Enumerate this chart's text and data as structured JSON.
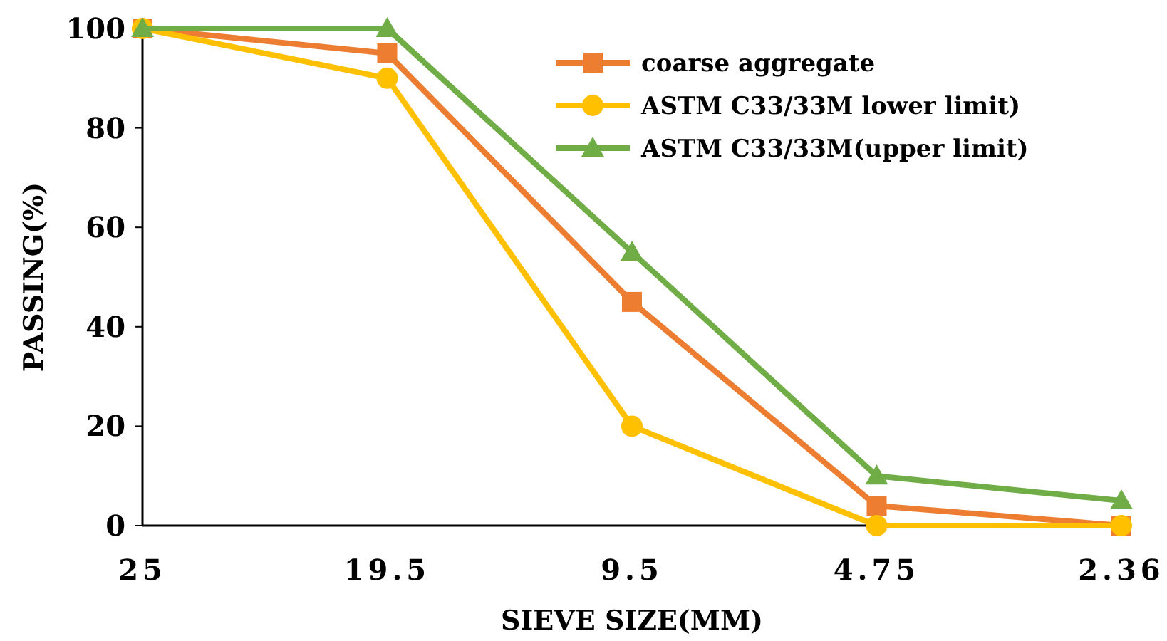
{
  "chart_data": {
    "type": "line",
    "xlabel": "SIEVE SIZE(MM)",
    "ylabel": "PASSING(%)",
    "categories": [
      "25",
      "19.5",
      "9.5",
      "4.75",
      "2.36"
    ],
    "ylim": [
      0,
      100
    ],
    "yticks": [
      0,
      20,
      40,
      60,
      80,
      100
    ],
    "grid": false,
    "legend": "top right",
    "line_style": "solid",
    "series": [
      {
        "name": "coarse aggregate",
        "color": "#ed7d31",
        "marker": "square",
        "values": [
          100,
          95,
          45,
          4,
          0
        ]
      },
      {
        "name": "ASTM C33/33M lower limit)",
        "color": "#ffc000",
        "marker": "circle",
        "values": [
          100,
          90,
          20,
          0,
          0
        ]
      },
      {
        "name": "ASTM C33/33M(upper limit)",
        "color": "#70ad47",
        "marker": "triangle",
        "values": [
          100,
          100,
          55,
          10,
          5
        ]
      }
    ]
  }
}
